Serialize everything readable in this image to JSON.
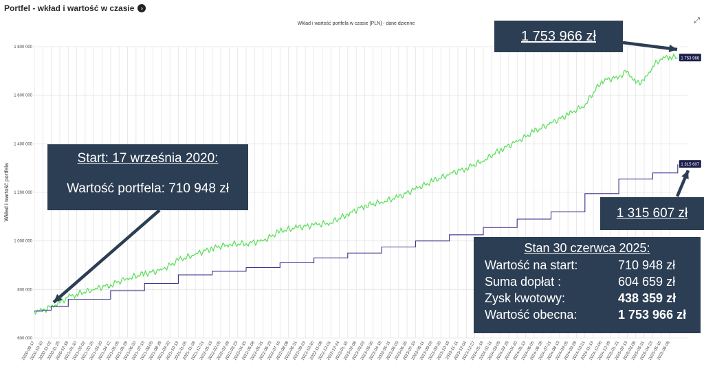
{
  "page_title": "Portfel - wkład i wartość w czasie",
  "icons": {
    "title_chevron": "chevron-right-icon",
    "expand": "expand-icon"
  },
  "colors": {
    "value_line": "#5ee05e",
    "contribution_line": "#3b2e8a",
    "callout_bg": "#2c3e54",
    "grid": "#e4e4e4"
  },
  "chart_data": {
    "type": "line",
    "title": "Wkład i wartość portfela w czasie [PLN] - dane dzienne",
    "ylabel": "Wkład i wartość portfela",
    "xlabel": "",
    "ylim": [
      600000,
      1800000
    ],
    "grid": true,
    "y_ticks": [
      600000,
      800000,
      1000000,
      1200000,
      1400000,
      1600000,
      1800000
    ],
    "y_tick_labels": [
      "600 000",
      "800 000",
      "1 000 000",
      "1 200 000",
      "1 400 000",
      "1 600 000",
      "1 800 000"
    ],
    "x_tick_labels": [
      "2020-09-17",
      "2020-10-10",
      "2020-11-02",
      "2020-11-25",
      "2020-12-18",
      "2021-01-10",
      "2021-02-02",
      "2021-02-25",
      "2021-03-20",
      "2021-04-12",
      "2021-05-05",
      "2021-05-28",
      "2021-06-20",
      "2021-07-13",
      "2021-08-05",
      "2021-08-28",
      "2021-09-20",
      "2021-10-13",
      "2021-11-05",
      "2021-11-28",
      "2021-12-21",
      "2022-01-13",
      "2022-02-05",
      "2022-02-28",
      "2022-03-23",
      "2022-04-15",
      "2022-05-08",
      "2022-05-31",
      "2022-06-23",
      "2022-07-16",
      "2022-08-08",
      "2022-08-31",
      "2022-09-23",
      "2022-10-16",
      "2022-11-08",
      "2022-12-01",
      "2022-12-24",
      "2023-01-16",
      "2023-02-08",
      "2023-03-03",
      "2023-03-26",
      "2023-04-18",
      "2023-05-11",
      "2023-06-03",
      "2023-06-26",
      "2023-07-19",
      "2023-08-11",
      "2023-09-03",
      "2023-09-26",
      "2023-10-19",
      "2023-11-11",
      "2023-12-04",
      "2023-12-27",
      "2024-01-19",
      "2024-02-11",
      "2024-03-05",
      "2024-03-28",
      "2024-04-20",
      "2024-05-13",
      "2024-06-05",
      "2024-06-28",
      "2024-07-21",
      "2024-08-13",
      "2024-09-05",
      "2024-09-28",
      "2024-10-21",
      "2024-11-13",
      "2024-12-06",
      "2024-12-29",
      "2025-01-21",
      "2025-02-13",
      "2025-03-08",
      "2025-03-31",
      "2025-04-23",
      "2025-05-16",
      "2025-06-08"
    ],
    "series": [
      {
        "name": "",
        "color": "#5ee05e",
        "x": [
          "2020-09-17",
          "2020-10-10",
          "2020-11-02",
          "2020-11-25",
          "2020-12-18",
          "2021-01-10",
          "2021-02-25",
          "2021-04-12",
          "2021-05-28",
          "2021-07-13",
          "2021-08-28",
          "2021-10-13",
          "2021-11-28",
          "2022-01-13",
          "2022-02-28",
          "2022-04-15",
          "2022-05-31",
          "2022-07-16",
          "2022-08-31",
          "2022-10-16",
          "2022-12-01",
          "2023-01-16",
          "2023-03-03",
          "2023-04-18",
          "2023-06-03",
          "2023-07-19",
          "2023-09-03",
          "2023-10-19",
          "2023-12-04",
          "2024-01-19",
          "2024-03-05",
          "2024-04-20",
          "2024-06-05",
          "2024-07-21",
          "2024-09-05",
          "2024-10-21",
          "2024-12-06",
          "2025-01-21",
          "2025-02-13",
          "2025-03-08",
          "2025-03-31",
          "2025-04-23",
          "2025-05-16",
          "2025-06-08",
          "2025-06-30"
        ],
        "values": [
          710948,
          712000,
          730000,
          745000,
          770000,
          780000,
          800000,
          820000,
          845000,
          865000,
          880000,
          920000,
          945000,
          970000,
          985000,
          990000,
          1000000,
          1040000,
          1055000,
          1065000,
          1075000,
          1110000,
          1145000,
          1160000,
          1180000,
          1215000,
          1245000,
          1275000,
          1300000,
          1330000,
          1375000,
          1410000,
          1450000,
          1485000,
          1520000,
          1560000,
          1660000,
          1675000,
          1700000,
          1650000,
          1660000,
          1720000,
          1750000,
          1760000,
          1753966
        ]
      },
      {
        "name": "",
        "color": "#3b2e8a",
        "x": [
          "2020-09-17",
          "2020-10-10",
          "2020-11-02",
          "2020-12-18",
          "2021-04-12",
          "2021-07-13",
          "2021-10-13",
          "2022-01-13",
          "2022-04-15",
          "2022-07-16",
          "2022-10-16",
          "2023-01-16",
          "2023-04-18",
          "2023-07-19",
          "2023-10-19",
          "2024-01-19",
          "2024-04-20",
          "2024-07-21",
          "2024-10-21",
          "2025-01-21",
          "2025-04-23",
          "2025-06-30"
        ],
        "values": [
          710948,
          715000,
          730000,
          760000,
          795000,
          825000,
          860000,
          875000,
          890000,
          910000,
          930000,
          950000,
          975000,
          1000000,
          1025000,
          1055000,
          1090000,
          1120000,
          1195000,
          1255000,
          1280000,
          1315607
        ]
      }
    ],
    "end_labels": [
      "1 753 966",
      "1 315 607"
    ]
  },
  "callouts": {
    "top_value": "1 753 966 zł",
    "start_title": "Start: 17 września 2020:",
    "start_value": "Wartość portfela: 710 948 zł",
    "contribution_value": "1 315 607 zł",
    "stats_title": "Stan 30 czerwca 2025:",
    "stats": [
      {
        "label": "Wartość na start:",
        "value": "710 948 zł",
        "bold": false
      },
      {
        "label": "Suma dopłat :",
        "value": "604 659 zł",
        "bold": false
      },
      {
        "label": "Zysk kwotowy:",
        "value": "438 359 zł",
        "bold": true
      },
      {
        "label": "Wartość obecna:",
        "value": "1 753 966 zł",
        "bold": true
      }
    ]
  }
}
